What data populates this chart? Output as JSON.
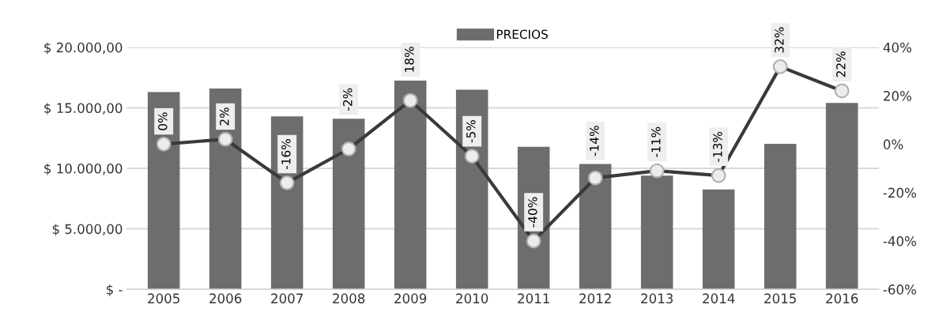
{
  "chart_data": {
    "type": "bar",
    "categories": [
      "2005",
      "2006",
      "2007",
      "2008",
      "2009",
      "2010",
      "2011",
      "2012",
      "2013",
      "2014",
      "2015",
      "2016"
    ],
    "series": [
      {
        "name": "PRECIOS",
        "type": "bar",
        "color": "#6d6d6d",
        "values": [
          16300,
          16600,
          14300,
          14100,
          17250,
          16500,
          11780,
          10360,
          9400,
          8260,
          12030,
          15410
        ]
      },
      {
        "type": "line",
        "axis": "y2",
        "color": "#3a3a3a",
        "marker": "circle",
        "values": [
          0,
          2,
          -16,
          -2,
          18,
          -5,
          -40,
          -14,
          -11,
          -13,
          32,
          22
        ],
        "value_labels": [
          "0%",
          "2%",
          "-16%",
          "-2%",
          "18%",
          "-5%",
          "-40%",
          "-14%",
          "-11%",
          "-13%",
          "32%",
          "22%"
        ]
      }
    ],
    "ylim": [
      0,
      20000
    ],
    "yticks": [
      {
        "value": 0,
        "label": "$ -"
      },
      {
        "value": 5000,
        "label": "$ 5.000,00"
      },
      {
        "value": 10000,
        "label": "$ 10.000,00"
      },
      {
        "value": 15000,
        "label": "$ 15.000,00"
      },
      {
        "value": 20000,
        "label": "$ 20.000,00"
      }
    ],
    "y2lim": [
      -60,
      40
    ],
    "y2ticks": [
      {
        "value": -60,
        "label": "-60%"
      },
      {
        "value": -40,
        "label": "-40%"
      },
      {
        "value": -20,
        "label": "-20%"
      },
      {
        "value": 0,
        "label": "0%"
      },
      {
        "value": 20,
        "label": "20%"
      },
      {
        "value": 40,
        "label": "40%"
      }
    ],
    "grid": "y",
    "legend": "top"
  }
}
